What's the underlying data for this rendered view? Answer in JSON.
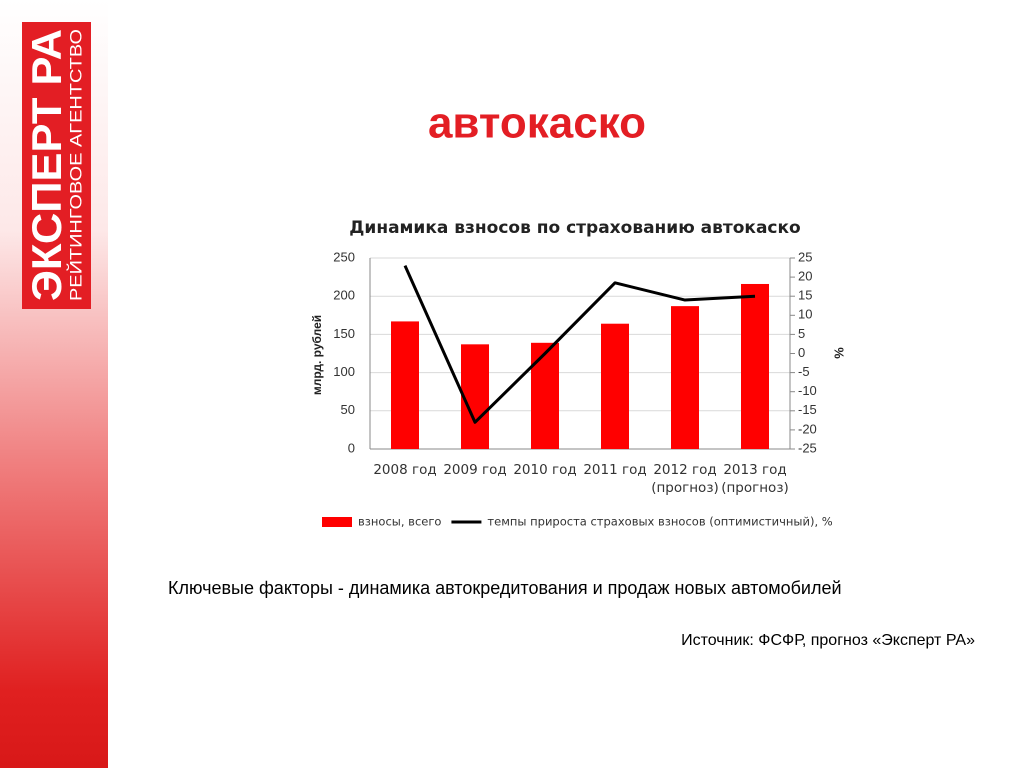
{
  "logo": {
    "name": "ЭКСПЕРТ РА",
    "subtitle": "РЕЙТИНГОВОЕ АГЕНТСТВО"
  },
  "slide_title": "автокаско",
  "chart_data": {
    "type": "bar",
    "title": "Динамика взносов по страхованию автокаско",
    "y_label": "млрд. рублей",
    "y2_label": "%",
    "categories": [
      "2008 год",
      "2009 год",
      "2010 год",
      "2011 год",
      "2012 год (прогноз)",
      "2013 год (прогноз)"
    ],
    "series": [
      {
        "name": "взносы, всего",
        "type": "bar",
        "color": "#ff0000",
        "values": [
          167,
          137,
          139,
          164,
          187,
          216
        ]
      },
      {
        "name": "темпы прироста страховых взносов (оптимистичный), %",
        "type": "line",
        "color": "#000000",
        "axis": "y2",
        "values": [
          23,
          -18,
          0,
          18.5,
          14,
          15
        ]
      }
    ],
    "ylim": [
      0,
      250
    ],
    "yticks": [
      0,
      50,
      100,
      150,
      200,
      250
    ],
    "y2lim": [
      -25,
      25
    ],
    "y2ticks": [
      -25,
      -20,
      -15,
      -10,
      -5,
      0,
      5,
      10,
      15,
      20,
      25
    ],
    "grid": true,
    "legend": "bottom"
  },
  "note": "Ключевые факторы - динамика автокредитования и продаж новых автомобилей",
  "source": "Источник: ФСФР, прогноз «Эксперт РА»"
}
